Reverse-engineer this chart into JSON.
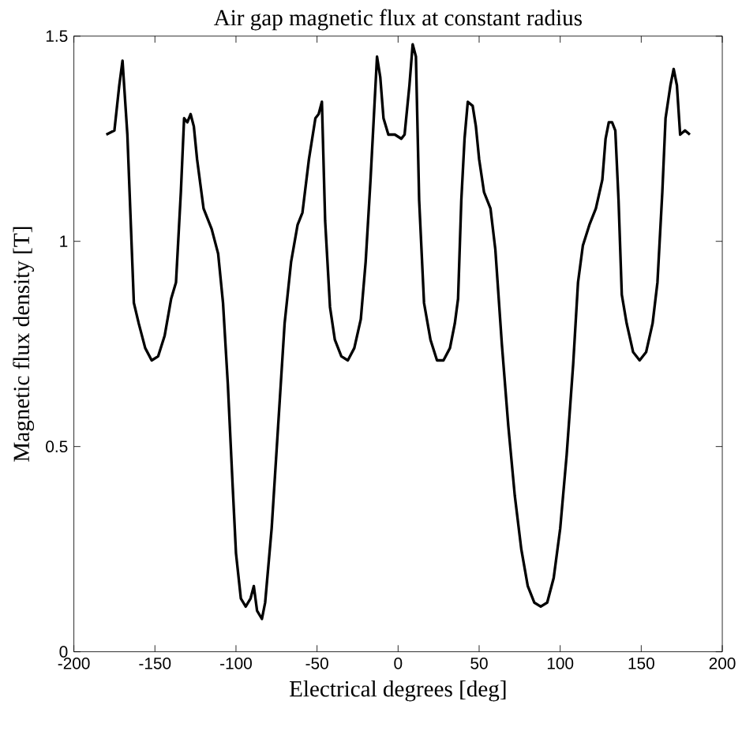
{
  "chart_data": {
    "type": "line",
    "title": "Air gap magnetic flux at constant radius",
    "xlabel": "Electrical degrees [deg]",
    "ylabel": "Magnetic flux density [T]",
    "xlim": [
      -200,
      200
    ],
    "xticks": [
      -200,
      -150,
      -100,
      -50,
      0,
      50,
      100,
      150,
      200
    ],
    "ylim": [
      0,
      1.5
    ],
    "yticks": [
      0,
      0.5,
      1,
      1.5
    ],
    "grid": false,
    "marker": "none",
    "line_style": "solid",
    "series": [
      {
        "color": "#000000",
        "x": [
          -180,
          -175,
          -172,
          -170,
          -167,
          -163,
          -160,
          -156,
          -152,
          -148,
          -144,
          -140,
          -137,
          -134,
          -132,
          -130,
          -128,
          -126,
          -124,
          -120,
          -115,
          -111,
          -108,
          -105,
          -102,
          -100,
          -97,
          -94,
          -91,
          -89,
          -87,
          -84,
          -82,
          -78,
          -74,
          -70,
          -66,
          -62,
          -59,
          -55,
          -51,
          -49,
          -47,
          -45,
          -42,
          -39,
          -35,
          -31,
          -27,
          -23,
          -20,
          -17,
          -15,
          -13,
          -11,
          -9,
          -6,
          -2,
          2,
          4,
          7,
          9,
          11,
          13,
          16,
          20,
          24,
          28,
          32,
          35,
          37,
          39,
          41,
          43,
          46,
          48,
          50,
          53,
          57,
          60,
          64,
          68,
          72,
          76,
          80,
          84,
          88,
          92,
          96,
          100,
          104,
          108,
          111,
          114,
          118,
          122,
          126,
          128,
          130,
          132,
          134,
          136,
          138,
          141,
          145,
          149,
          153,
          157,
          160,
          163,
          165,
          168,
          170,
          172,
          174,
          177,
          180
        ],
        "values": [
          1.26,
          1.27,
          1.38,
          1.44,
          1.26,
          0.85,
          0.8,
          0.74,
          0.71,
          0.72,
          0.77,
          0.86,
          0.9,
          1.12,
          1.3,
          1.29,
          1.31,
          1.28,
          1.2,
          1.08,
          1.03,
          0.97,
          0.85,
          0.65,
          0.4,
          0.24,
          0.13,
          0.11,
          0.13,
          0.16,
          0.1,
          0.08,
          0.12,
          0.3,
          0.55,
          0.8,
          0.95,
          1.04,
          1.07,
          1.2,
          1.3,
          1.31,
          1.34,
          1.05,
          0.84,
          0.76,
          0.72,
          0.71,
          0.74,
          0.81,
          0.95,
          1.15,
          1.3,
          1.45,
          1.4,
          1.3,
          1.26,
          1.26,
          1.25,
          1.26,
          1.38,
          1.48,
          1.45,
          1.1,
          0.85,
          0.76,
          0.71,
          0.71,
          0.74,
          0.8,
          0.86,
          1.1,
          1.25,
          1.34,
          1.33,
          1.28,
          1.2,
          1.12,
          1.08,
          0.98,
          0.75,
          0.55,
          0.38,
          0.25,
          0.16,
          0.12,
          0.11,
          0.12,
          0.18,
          0.3,
          0.48,
          0.7,
          0.9,
          0.99,
          1.04,
          1.08,
          1.15,
          1.25,
          1.29,
          1.29,
          1.27,
          1.1,
          0.87,
          0.8,
          0.73,
          0.71,
          0.73,
          0.8,
          0.9,
          1.12,
          1.3,
          1.38,
          1.42,
          1.38,
          1.26,
          1.27,
          1.26
        ]
      }
    ]
  }
}
